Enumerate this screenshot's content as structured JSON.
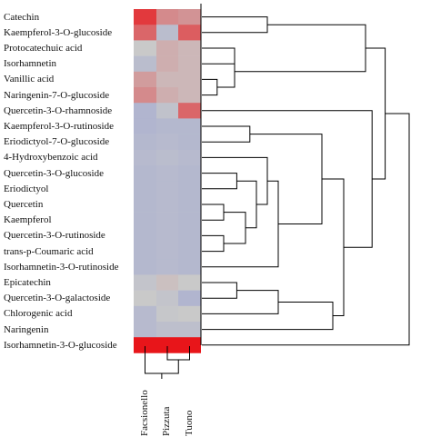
{
  "chart_data": {
    "type": "heatmap",
    "title": "",
    "rows": [
      "Catechin",
      "Kaempferol-3-O-glucoside",
      "Protocatechuic acid",
      "Isorhamnetin",
      "Vanillic acid",
      "Naringenin-7-O-glucoside",
      "Quercetin-3-O-rhamnoside",
      "Kaempferol-3-O-rutinoside",
      "Eriodictyol-7-O-glucoside",
      "4-Hydroxybenzoic acid",
      "Quercetin-3-O-glucoside",
      "Eriodictyol",
      "Quercetin",
      "Kaempferol",
      "Quercetin-3-O-rutinoside",
      "trans-p-Coumaric acid",
      "Isorhamnetin-3-O-rutinoside",
      "Epicatechin",
      "Quercetin-3-O-galactoside",
      "Chlorogenic acid",
      "Naringenin",
      "Isorhamnetin-3-O-glucoside"
    ],
    "columns": [
      "Facsionello",
      "Pizzuta",
      "Tuono"
    ],
    "values": [
      [
        0.8,
        0.35,
        0.3
      ],
      [
        0.55,
        -0.25,
        0.6
      ],
      [
        0.0,
        0.15,
        0.1
      ],
      [
        -0.25,
        0.15,
        0.1
      ],
      [
        0.25,
        0.1,
        0.1
      ],
      [
        0.35,
        0.15,
        0.1
      ],
      [
        -0.4,
        -0.15,
        0.55
      ],
      [
        -0.4,
        -0.35,
        -0.35
      ],
      [
        -0.35,
        -0.3,
        -0.35
      ],
      [
        -0.3,
        -0.25,
        -0.3
      ],
      [
        -0.35,
        -0.3,
        -0.35
      ],
      [
        -0.35,
        -0.3,
        -0.35
      ],
      [
        -0.35,
        -0.3,
        -0.35
      ],
      [
        -0.35,
        -0.3,
        -0.35
      ],
      [
        -0.35,
        -0.3,
        -0.35
      ],
      [
        -0.35,
        -0.3,
        -0.35
      ],
      [
        -0.35,
        -0.3,
        -0.35
      ],
      [
        -0.1,
        0.05,
        0.0
      ],
      [
        0.0,
        -0.1,
        -0.4
      ],
      [
        -0.3,
        -0.05,
        0.0
      ],
      [
        -0.3,
        -0.2,
        -0.2
      ],
      [
        1.0,
        1.0,
        1.0
      ]
    ],
    "color_scale": {
      "low": "#8e97d8",
      "mid": "#c9c9c9",
      "high": "#e8151a"
    },
    "row_dendrogram": {
      "position": "right",
      "node_heights": {
        "pair_1": 0.3,
        "pair_2": 0.15,
        "pair_3": 0.07,
        "pair_4": 0.03,
        "pair_5": 0.22,
        "pair_6": 0.16,
        "big_1": 0.55,
        "big_2": 0.72,
        "cluster_a": 0.25,
        "cluster_b": 0.1,
        "cluster_c": 0.35,
        "cluster_d": 0.55,
        "cluster_e": 0.6,
        "cluster_f": 0.78,
        "root": 0.95
      }
    },
    "column_dendrogram": {
      "position": "bottom"
    }
  }
}
